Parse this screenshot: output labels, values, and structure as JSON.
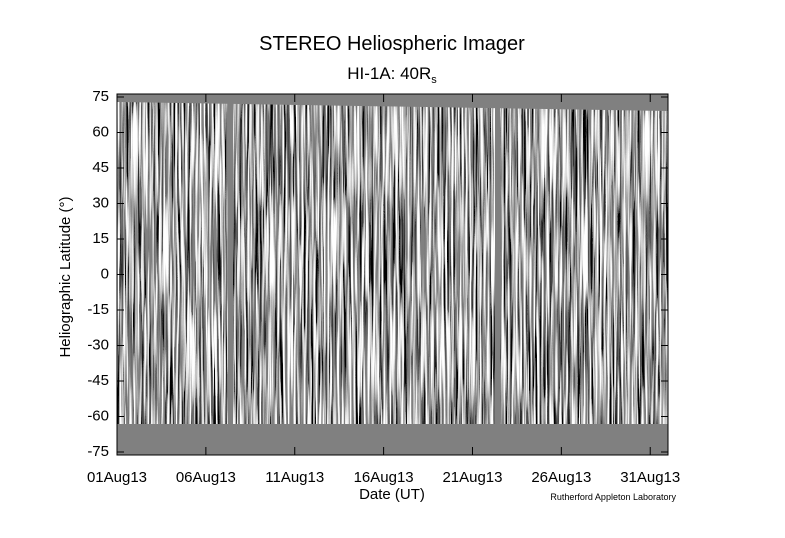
{
  "chart_data": {
    "type": "image",
    "title": "STEREO Heliospheric Imager",
    "subtitle": "HI-1A: 40R",
    "subtitle_subscript": "s",
    "x_label": "Date (UT)",
    "y_label": "Heliographic Latitude (°)",
    "credit": "Rutherford Appleton Laboratory",
    "xlim": [
      1,
      32
    ],
    "xticks": [
      {
        "value": 1,
        "label": "01Aug13"
      },
      {
        "value": 6,
        "label": "06Aug13"
      },
      {
        "value": 11,
        "label": "11Aug13"
      },
      {
        "value": 16,
        "label": "16Aug13"
      },
      {
        "value": 21,
        "label": "21Aug13"
      },
      {
        "value": 26,
        "label": "26Aug13"
      },
      {
        "value": 31,
        "label": "31Aug13"
      }
    ],
    "ylim": [
      -75,
      75
    ],
    "yticks": [
      -75,
      -60,
      -45,
      -30,
      -15,
      0,
      15,
      30,
      45,
      60,
      75
    ]
  }
}
